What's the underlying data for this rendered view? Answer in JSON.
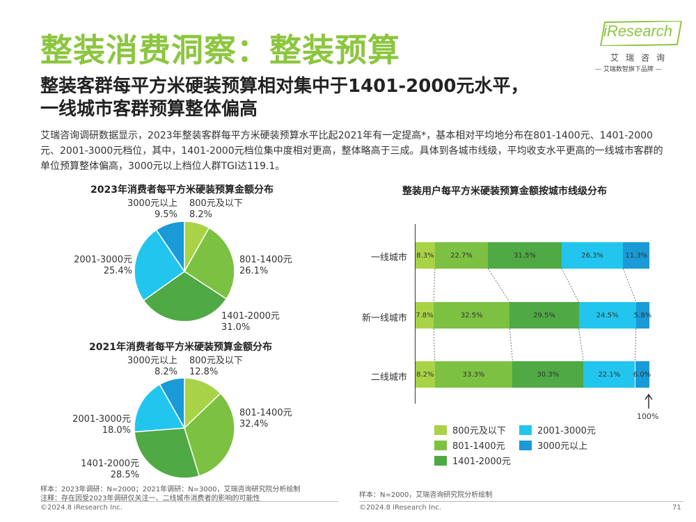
{
  "title": "整装消费洞察：整装预算",
  "subtitle_lines": [
    "整装客群每平方米硬装预算相对集中于1401-2000元水平，",
    "一线城市客群预算整体偏高"
  ],
  "description": "艾瑞咨询调研数据显示，2023年整装客群每平方米硬装预算水平比起2021年有一定提高*，基本相对平均地分布在801-1400元、1401-2000元、2001-3000元档位，其中，1401-2000元档位集中度相对更高，整体略高于三成。具体到各城市线级，平均收支水平更高的一线城市客群的单位预算整体偏高，3000元以上档位人群TGI达119.1。",
  "logo": {
    "word": "iResearch",
    "cn": "艾瑞咨询",
    "slogan": "— 艾瑞数智旗下品牌 —"
  },
  "colors": {
    "c1": "#a9d346",
    "c2": "#7cc142",
    "c3": "#4fa944",
    "c4": "#22c5ee",
    "c5": "#1a9ad6",
    "title_green": "#8cc63f"
  },
  "chart_data": [
    {
      "type": "pie",
      "title": "2023年消费者每平方米硬装预算金额分布",
      "slices": [
        {
          "name": "800元及以下",
          "value": 8.2,
          "label": "8.2%"
        },
        {
          "name": "801-1400元",
          "value": 26.1,
          "label": "26.1%"
        },
        {
          "name": "1401-2000元",
          "value": 31.0,
          "label": "31.0%"
        },
        {
          "name": "2001-3000元",
          "value": 25.4,
          "label": "25.4%"
        },
        {
          "name": "3000元以上",
          "value": 9.5,
          "label": "9.5%"
        }
      ]
    },
    {
      "type": "pie",
      "title": "2021年消费者每平方米硬装预算金额分布",
      "slices": [
        {
          "name": "800元及以下",
          "value": 12.8,
          "label": "12.8%"
        },
        {
          "name": "801-1400元",
          "value": 32.4,
          "label": "32.4%"
        },
        {
          "name": "1401-2000元",
          "value": 28.5,
          "label": "28.5%"
        },
        {
          "name": "2001-3000元",
          "value": 18.0,
          "label": "18.0%"
        },
        {
          "name": "3000元以上",
          "value": 8.2,
          "label": "8.2%"
        }
      ]
    },
    {
      "type": "bar",
      "stacked": true,
      "orientation": "horizontal",
      "title": "整装用户每平方米硬装预算金额按城市线级分布",
      "categories": [
        "一线城市",
        "新一线城市",
        "二线城市"
      ],
      "series": [
        {
          "name": "800元及以下",
          "values": [
            8.3,
            7.8,
            8.2
          ],
          "labels": [
            "8.3%",
            "7.8%",
            "8.2%"
          ]
        },
        {
          "name": "801-1400元",
          "values": [
            22.7,
            32.5,
            33.3
          ],
          "labels": [
            "22.7%",
            "32.5%",
            "33.3%"
          ]
        },
        {
          "name": "1401-2000元",
          "values": [
            31.5,
            29.5,
            30.3
          ],
          "labels": [
            "31.5%",
            "29.5%",
            "30.3%"
          ]
        },
        {
          "name": "2001-3000元",
          "values": [
            26.3,
            24.5,
            22.1
          ],
          "labels": [
            "26.3%",
            "24.5%",
            "22.1%"
          ]
        },
        {
          "name": "3000元以上",
          "values": [
            11.3,
            5.8,
            6.0
          ],
          "labels": [
            "11.3%",
            "5.8%",
            "6.0%"
          ]
        }
      ],
      "xlim": [
        0,
        100
      ],
      "marker_label": "100%",
      "legend": [
        "800元及以下",
        "2001-3000元",
        "801-1400元",
        "3000元以上",
        "1401-2000元"
      ]
    }
  ],
  "notes": {
    "left_sample": "样本：2023年调研：N=2000；2021年调研：N=3000，艾瑞咨询研究院分析绘制",
    "left_note": "注释：存在因受2023年调研仅关注一、二线城市消费者的影响的可能性",
    "right_sample": "样本：N=2000，艾瑞咨询研究院分析绘制"
  },
  "footer": {
    "left": "©2024.8 iResearch Inc.",
    "right": "©2024.8 iResearch Inc.",
    "page": "71"
  }
}
